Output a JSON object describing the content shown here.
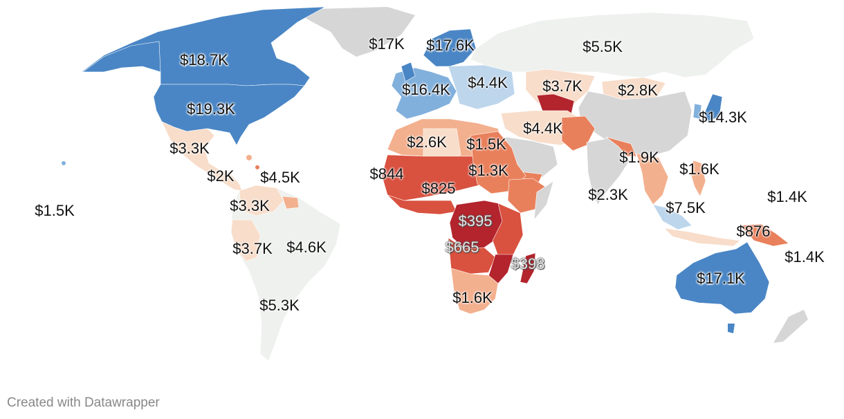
{
  "map": {
    "colors": {
      "high": "#4a86c5",
      "mid_high": "#82b0dc",
      "light_blue": "#bdd6ec",
      "neutral": "#eef1ee",
      "nodata": "#d6d6d6",
      "peach": "#f8ddca",
      "light_orange": "#f3b08e",
      "orange": "#e9805c",
      "red": "#d9513f",
      "dark_red": "#b3242d"
    },
    "labels": [
      {
        "id": "usa",
        "text": "$19.3K"
      },
      {
        "id": "canada",
        "text": "$18.7K"
      },
      {
        "id": "iceland",
        "text": "$17K"
      },
      {
        "id": "scandinavia",
        "text": "$17.6K"
      },
      {
        "id": "russia",
        "text": "$5.5K"
      },
      {
        "id": "western-europe",
        "text": "$16.4K"
      },
      {
        "id": "eastern-europe",
        "text": "$4.4K"
      },
      {
        "id": "central-asia",
        "text": "$3.7K"
      },
      {
        "id": "mongolia",
        "text": "$2.8K"
      },
      {
        "id": "japan",
        "text": "$14.3K"
      },
      {
        "id": "middle-east",
        "text": "$4.4K"
      },
      {
        "id": "mexico",
        "text": "$3.3K"
      },
      {
        "id": "central-america",
        "text": "$2K"
      },
      {
        "id": "caribbean",
        "text": "$4.5K"
      },
      {
        "id": "hawaii",
        "text": "$1.5K"
      },
      {
        "id": "colombia",
        "text": "$3.3K"
      },
      {
        "id": "peru",
        "text": "$3.7K"
      },
      {
        "id": "brazil",
        "text": "$4.6K"
      },
      {
        "id": "argentina",
        "text": "$5.3K"
      },
      {
        "id": "north-africa",
        "text": "$2.6K"
      },
      {
        "id": "egypt-libya",
        "text": "$1.5K"
      },
      {
        "id": "west-africa",
        "text": "$844"
      },
      {
        "id": "sahel",
        "text": "$825"
      },
      {
        "id": "sudan",
        "text": "$1.3K"
      },
      {
        "id": "congo",
        "text": "$395"
      },
      {
        "id": "angola",
        "text": "$665"
      },
      {
        "id": "madagascar",
        "text": "$398"
      },
      {
        "id": "southern-africa",
        "text": "$1.6K"
      },
      {
        "id": "south-asia",
        "text": "$1.9K"
      },
      {
        "id": "philippines",
        "text": "$1.6K"
      },
      {
        "id": "indian-ocean",
        "text": "$2.3K"
      },
      {
        "id": "malaysia",
        "text": "$7.5K"
      },
      {
        "id": "micronesia",
        "text": "$1.4K"
      },
      {
        "id": "papua",
        "text": "$876"
      },
      {
        "id": "solomon",
        "text": "$1.4K"
      },
      {
        "id": "australia",
        "text": "$17.1K"
      }
    ]
  },
  "footer": {
    "credit": "Created with Datawrapper"
  }
}
